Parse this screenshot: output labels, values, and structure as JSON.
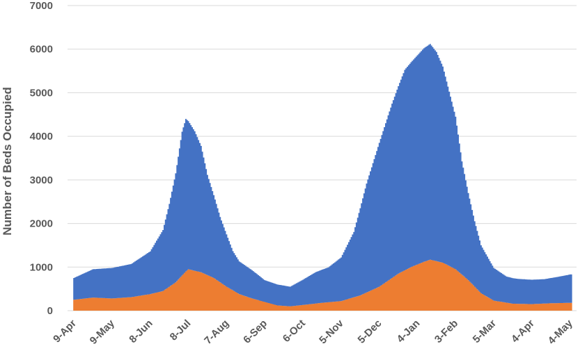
{
  "chart_data": {
    "type": "area",
    "stacked": true,
    "ylabel": "Number of Beds Occupied",
    "xlabel": "",
    "ylim": [
      0,
      7000
    ],
    "yticks": [
      0,
      1000,
      2000,
      3000,
      4000,
      5000,
      6000,
      7000
    ],
    "grid": true,
    "legend": "none",
    "x_tick_labels": [
      "9-Apr",
      "9-May",
      "8-Jun",
      "8-Jul",
      "7-Aug",
      "6-Sep",
      "6-Oct",
      "5-Nov",
      "5-Dec",
      "4-Jan",
      "3-Feb",
      "5-Mar",
      "4-Apr",
      "4-May"
    ],
    "x_tick_days": [
      0,
      30,
      60,
      90,
      120,
      150,
      180,
      210,
      240,
      270,
      300,
      330,
      360,
      390
    ],
    "x_range_days": [
      -5,
      395
    ],
    "series": [
      {
        "color": "#ED7D31",
        "points": [
          [
            0,
            250
          ],
          [
            15,
            300
          ],
          [
            30,
            280
          ],
          [
            45,
            310
          ],
          [
            60,
            380
          ],
          [
            70,
            450
          ],
          [
            80,
            650
          ],
          [
            88,
            900
          ],
          [
            90,
            950
          ],
          [
            100,
            880
          ],
          [
            110,
            750
          ],
          [
            120,
            550
          ],
          [
            130,
            380
          ],
          [
            140,
            280
          ],
          [
            150,
            200
          ],
          [
            160,
            120
          ],
          [
            170,
            100
          ],
          [
            180,
            130
          ],
          [
            195,
            180
          ],
          [
            210,
            220
          ],
          [
            225,
            350
          ],
          [
            240,
            550
          ],
          [
            255,
            850
          ],
          [
            265,
            1000
          ],
          [
            275,
            1120
          ],
          [
            280,
            1170
          ],
          [
            290,
            1100
          ],
          [
            300,
            950
          ],
          [
            310,
            700
          ],
          [
            320,
            400
          ],
          [
            330,
            230
          ],
          [
            345,
            160
          ],
          [
            360,
            150
          ],
          [
            375,
            170
          ],
          [
            390,
            180
          ]
        ]
      },
      {
        "color": "#4472C4",
        "points": [
          [
            0,
            500
          ],
          [
            15,
            650
          ],
          [
            30,
            700
          ],
          [
            45,
            760
          ],
          [
            60,
            980
          ],
          [
            70,
            1400
          ],
          [
            75,
            1900
          ],
          [
            80,
            2500
          ],
          [
            85,
            3300
          ],
          [
            88,
            3500
          ],
          [
            90,
            3400
          ],
          [
            95,
            3200
          ],
          [
            100,
            2900
          ],
          [
            105,
            2300
          ],
          [
            110,
            1900
          ],
          [
            115,
            1500
          ],
          [
            120,
            1200
          ],
          [
            125,
            900
          ],
          [
            130,
            750
          ],
          [
            140,
            650
          ],
          [
            150,
            500
          ],
          [
            160,
            480
          ],
          [
            170,
            450
          ],
          [
            180,
            580
          ],
          [
            190,
            720
          ],
          [
            200,
            800
          ],
          [
            210,
            1000
          ],
          [
            220,
            1500
          ],
          [
            230,
            2500
          ],
          [
            240,
            3300
          ],
          [
            250,
            4000
          ],
          [
            260,
            4600
          ],
          [
            270,
            4800
          ],
          [
            275,
            4900
          ],
          [
            280,
            4950
          ],
          [
            285,
            4800
          ],
          [
            290,
            4500
          ],
          [
            295,
            4000
          ],
          [
            300,
            3500
          ],
          [
            305,
            2600
          ],
          [
            310,
            2000
          ],
          [
            315,
            1500
          ],
          [
            320,
            1100
          ],
          [
            330,
            750
          ],
          [
            340,
            600
          ],
          [
            350,
            570
          ],
          [
            360,
            560
          ],
          [
            370,
            560
          ],
          [
            380,
            600
          ],
          [
            390,
            650
          ]
        ]
      }
    ]
  }
}
